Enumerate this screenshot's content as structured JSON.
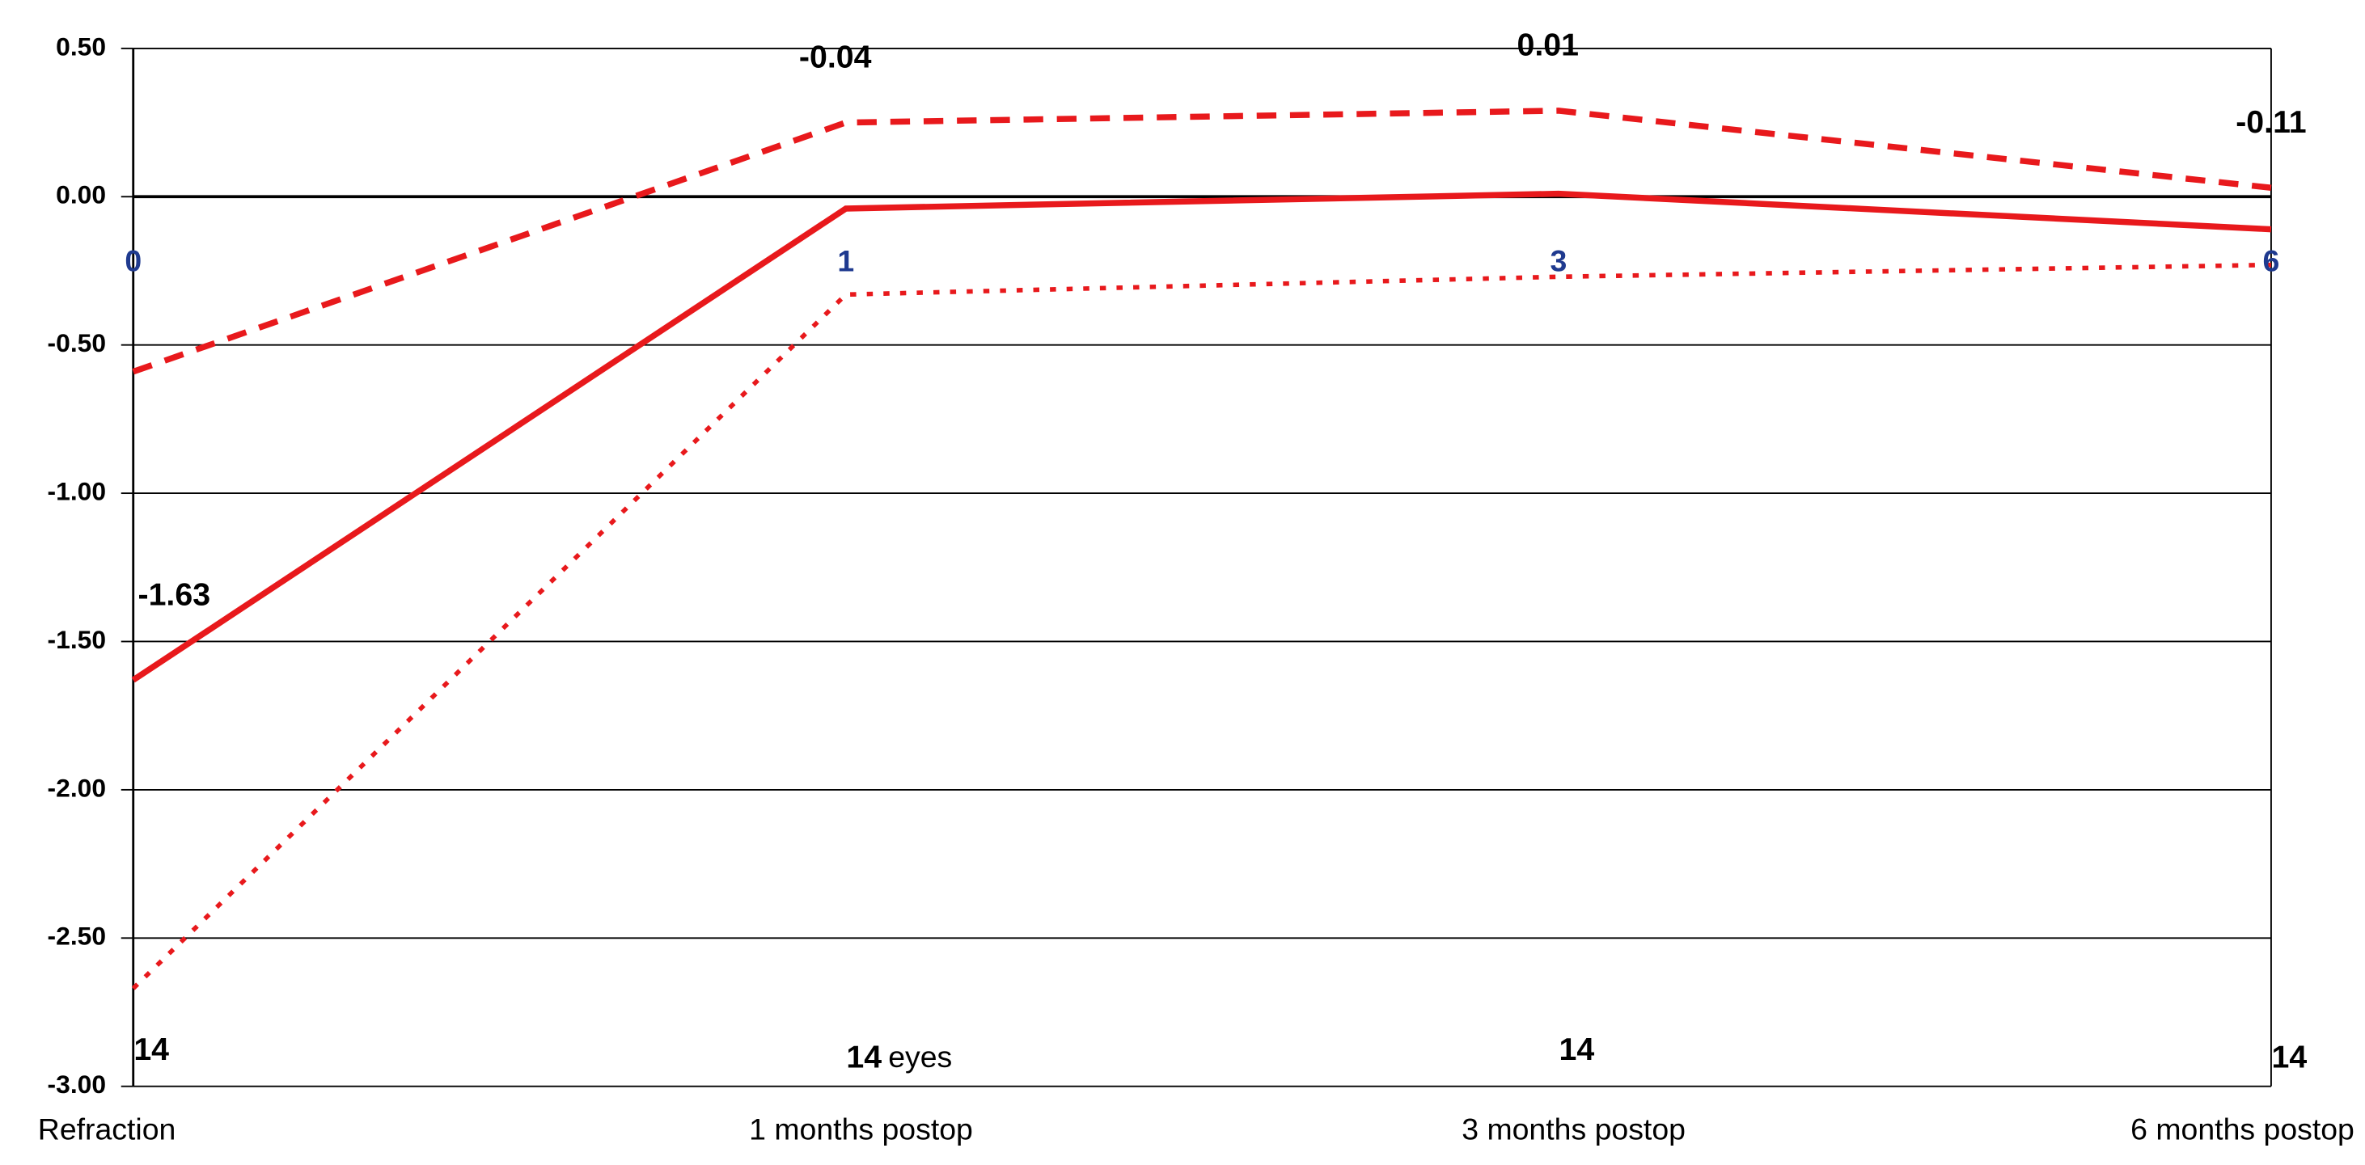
{
  "chart_data": {
    "type": "line",
    "categories": [
      "Refraction",
      "1 months postop",
      "3 months postop",
      "6 months postop"
    ],
    "point_labels": [
      "0",
      "1",
      "3",
      "6"
    ],
    "counts": [
      14,
      14,
      14,
      14
    ],
    "count_unit": "eyes",
    "series": [
      {
        "color": "#e8191c",
        "style": "solid",
        "values": [
          -1.63,
          -0.04,
          0.01,
          -0.11
        ],
        "show_labels": true
      },
      {
        "color": "#e8191c",
        "style": "dashed",
        "values": [
          -0.59,
          0.25,
          0.29,
          0.03
        ]
      },
      {
        "color": "#e8191c",
        "style": "dotted",
        "values": [
          -2.67,
          -0.33,
          -0.27,
          -0.23
        ]
      }
    ],
    "ylim": [
      -3,
      0.5
    ],
    "yticks": [
      {
        "value": -3,
        "label": "-3.00"
      },
      {
        "value": -2.5,
        "label": "-2.50"
      },
      {
        "value": -2,
        "label": "-2.00"
      },
      {
        "value": -1.5,
        "label": "-1.50"
      },
      {
        "value": -1,
        "label": "-1.00"
      },
      {
        "value": -0.5,
        "label": "-0.50"
      },
      {
        "value": 0,
        "label": "0.00"
      },
      {
        "value": 0.5,
        "label": "0.50"
      }
    ],
    "grid": true
  }
}
